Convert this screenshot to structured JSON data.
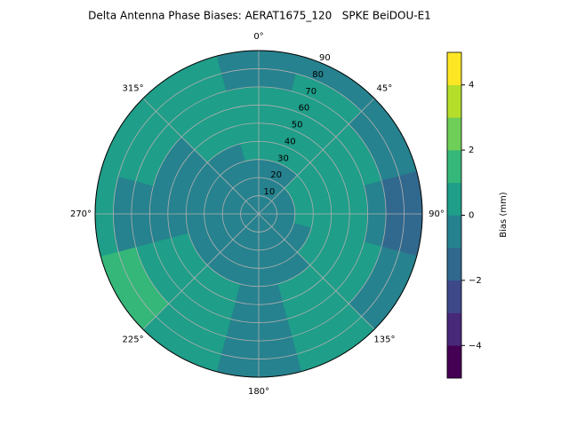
{
  "chart_data": {
    "type": "polar_contour",
    "title": "Delta Antenna Phase Biases: AERAT1675_120   SPKE BeiDOU-E1",
    "colorbar_label": "Bias (mm)",
    "theta": [
      0,
      30,
      60,
      90,
      120,
      150,
      180,
      210,
      240,
      270,
      300,
      330
    ],
    "r": [
      5,
      15,
      25,
      35,
      45,
      55,
      65,
      75,
      85
    ],
    "rlim": [
      0,
      90
    ],
    "values": [
      [
        -0.5,
        -0.5,
        -0.5,
        -0.5,
        -0.5,
        -0.5,
        -0.5,
        -0.5,
        -0.5,
        -0.5,
        -0.5,
        -0.5
      ],
      [
        -0.5,
        -0.5,
        -0.5,
        -0.5,
        -0.5,
        -0.5,
        -0.5,
        -0.5,
        -0.5,
        -0.5,
        -0.5,
        -0.5
      ],
      [
        -0.5,
        -0.5,
        0.5,
        0.5,
        -0.5,
        -0.5,
        -0.5,
        -0.5,
        -0.5,
        -0.5,
        -0.5,
        -0.5
      ],
      [
        0.5,
        0.5,
        0.5,
        0.5,
        0.5,
        -0.5,
        -0.5,
        -0.5,
        -0.5,
        -0.5,
        -0.5,
        -0.5
      ],
      [
        0.5,
        0.5,
        0.5,
        0.5,
        0.5,
        0.5,
        -0.5,
        0.5,
        0.5,
        -0.5,
        -0.5,
        0.5
      ],
      [
        0.5,
        0.5,
        0.5,
        0.5,
        0.5,
        0.5,
        -0.5,
        0.5,
        0.5,
        -0.5,
        -0.5,
        0.5
      ],
      [
        0.5,
        0.5,
        0.5,
        -0.5,
        0.5,
        0.5,
        -0.5,
        0.5,
        0.5,
        -0.5,
        0.5,
        0.5
      ],
      [
        -0.5,
        0.5,
        -0.5,
        -1.5,
        -0.5,
        0.5,
        -0.5,
        0.5,
        1.5,
        -0.5,
        0.5,
        0.5
      ],
      [
        -0.5,
        -0.5,
        -0.5,
        -1.5,
        -0.5,
        0.5,
        -0.5,
        0.5,
        1.5,
        0.5,
        0.5,
        0.5
      ]
    ],
    "levels": [
      -5,
      -4,
      -3,
      -2,
      -1,
      0,
      1,
      2,
      3,
      4,
      5
    ],
    "colors": [
      "#440154",
      "#482878",
      "#3e4989",
      "#31688e",
      "#26828e",
      "#1f9e89",
      "#35b779",
      "#6ece58",
      "#b5de2b",
      "#fde725"
    ],
    "rticks": [
      10,
      20,
      30,
      40,
      50,
      60,
      70,
      80,
      90
    ],
    "thetaticks": [
      {
        "value": 0,
        "label": "0°"
      },
      {
        "value": 45,
        "label": "45°"
      },
      {
        "value": 90,
        "label": "90°"
      },
      {
        "value": 135,
        "label": "135°"
      },
      {
        "value": 180,
        "label": "180°"
      },
      {
        "value": 225,
        "label": "225°"
      },
      {
        "value": 270,
        "label": "270°"
      },
      {
        "value": 315,
        "label": "315°"
      }
    ],
    "cticks": [
      {
        "value": -4,
        "label": "−4"
      },
      {
        "value": -2,
        "label": "−2"
      },
      0,
      2,
      4
    ],
    "clim": [
      -5,
      5
    ],
    "grid": true
  }
}
